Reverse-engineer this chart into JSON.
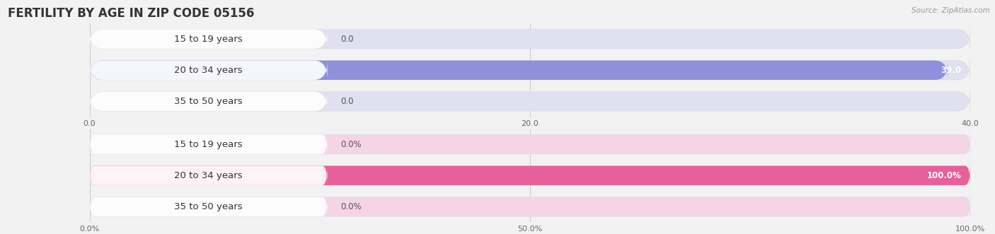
{
  "title": "FERTILITY BY AGE IN ZIP CODE 05156",
  "source": "Source: ZipAtlas.com",
  "top_chart": {
    "categories": [
      "15 to 19 years",
      "20 to 34 years",
      "35 to 50 years"
    ],
    "values": [
      0.0,
      39.0,
      0.0
    ],
    "xlim": [
      0,
      40
    ],
    "xticks": [
      0.0,
      20.0,
      40.0
    ],
    "xtick_labels": [
      "0.0",
      "20.0",
      "40.0"
    ],
    "bar_color": "#8f8fdc",
    "bar_bg_color": "#e0e0f0",
    "label_bg_color": "#ffffff"
  },
  "bottom_chart": {
    "categories": [
      "15 to 19 years",
      "20 to 34 years",
      "35 to 50 years"
    ],
    "values": [
      0.0,
      100.0,
      0.0
    ],
    "xlim": [
      0,
      100
    ],
    "xticks": [
      0.0,
      50.0,
      100.0
    ],
    "xtick_labels": [
      "0.0%",
      "50.0%",
      "100.0%"
    ],
    "bar_color": "#e8609a",
    "bar_bg_color": "#f5d5e5",
    "label_bg_color": "#ffffff"
  },
  "bg_color": "#f2f2f2",
  "chart_bg_color": "#f2f2f2",
  "bar_height": 0.62,
  "label_font_size": 9.5,
  "value_font_size": 8.5,
  "title_font_size": 12,
  "tick_font_size": 8
}
